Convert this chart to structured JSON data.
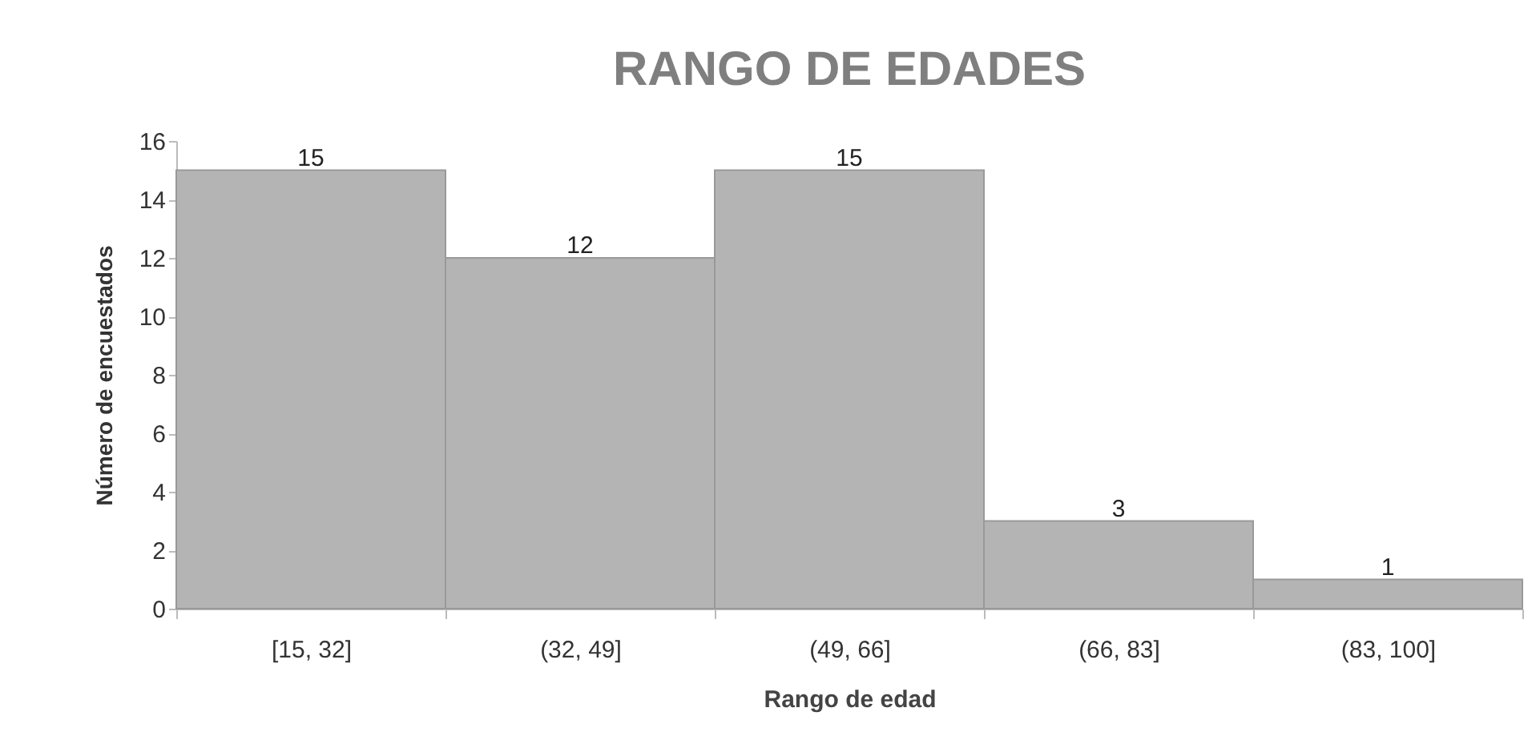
{
  "chart_data": {
    "type": "bar",
    "title": "RANGO DE EDADES",
    "xlabel": "Rango de edad",
    "ylabel": "Número de encuestados",
    "categories": [
      "[15, 32]",
      "(32, 49]",
      "(49, 66]",
      "(66, 83]",
      "(83, 100]"
    ],
    "values": [
      15,
      12,
      15,
      3,
      1
    ],
    "color": "#b4b4b4",
    "ylim": [
      0,
      16
    ],
    "yticks": [
      0,
      2,
      4,
      6,
      8,
      10,
      12,
      14,
      16
    ],
    "data_labels": true
  }
}
